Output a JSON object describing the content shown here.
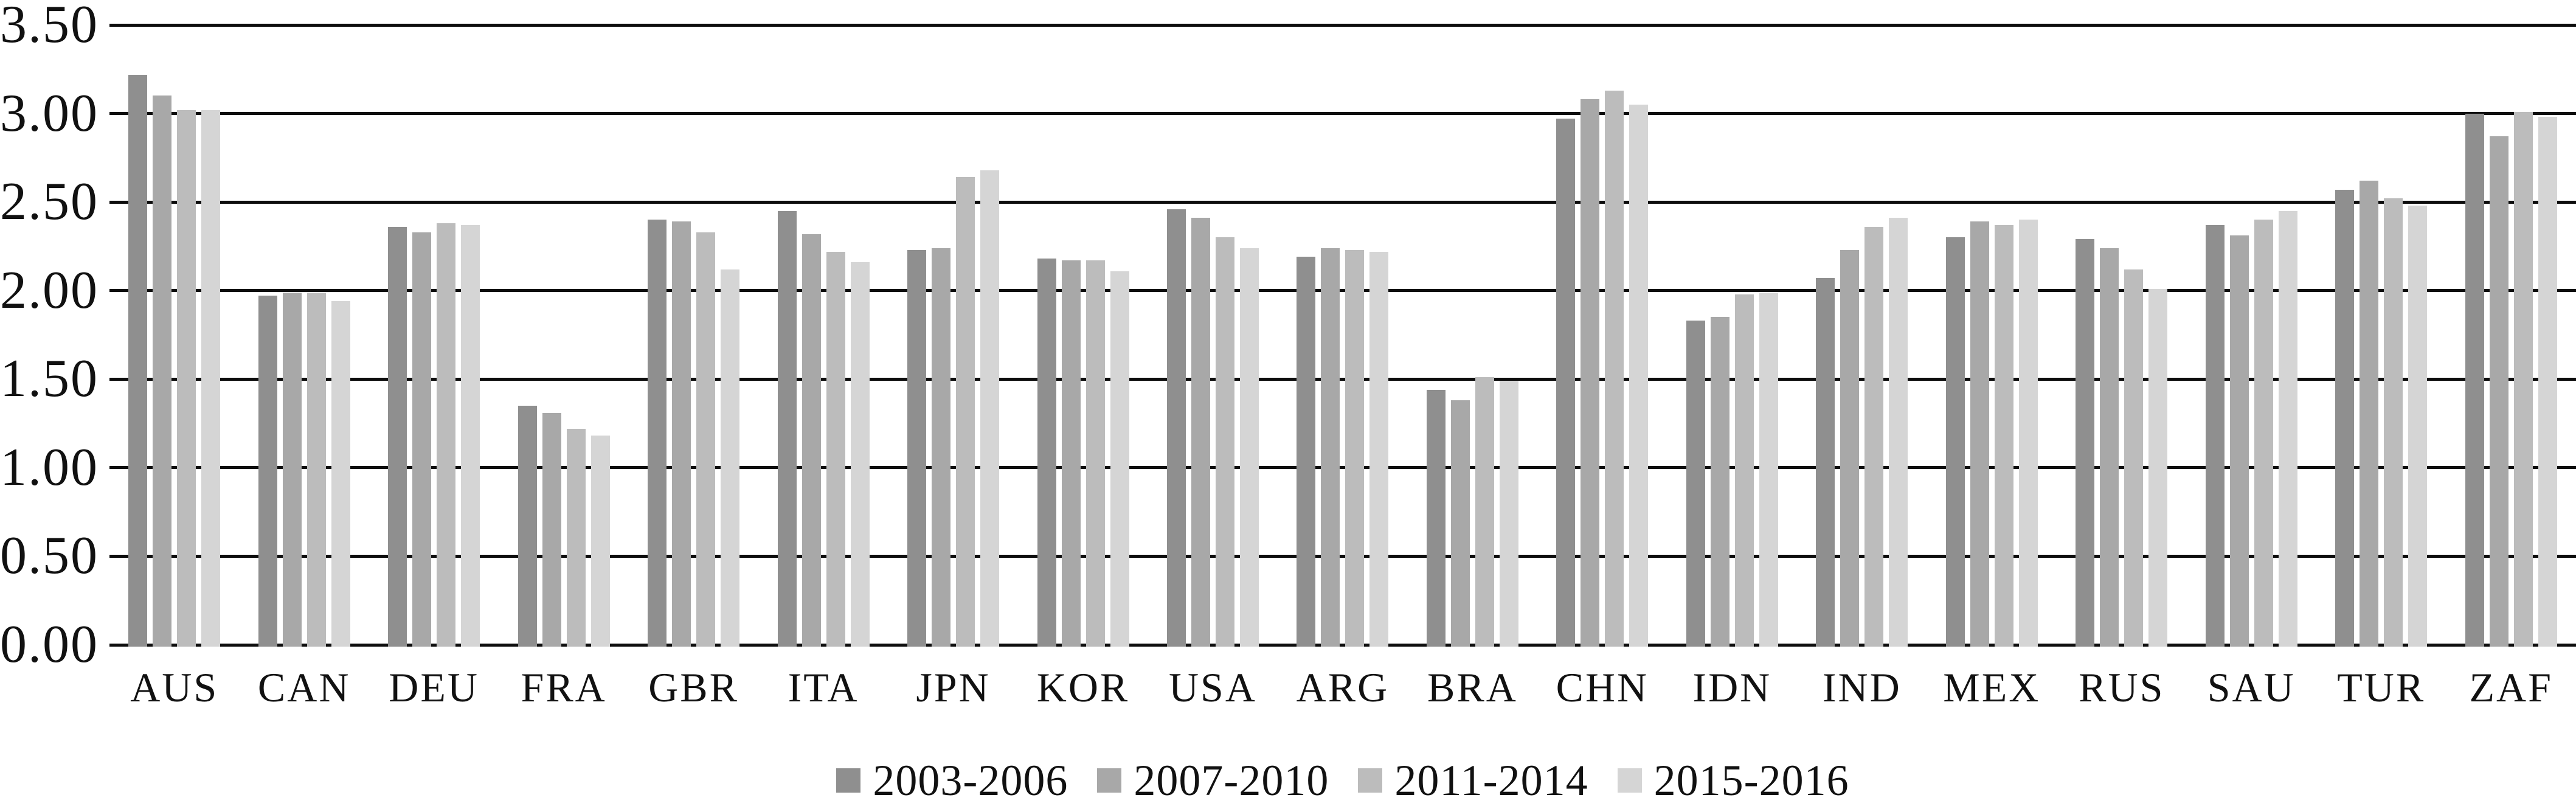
{
  "chart_data": {
    "type": "bar",
    "title": "",
    "categories": [
      "AUS",
      "CAN",
      "DEU",
      "FRA",
      "GBR",
      "ITA",
      "JPN",
      "KOR",
      "USA",
      "ARG",
      "BRA",
      "CHN",
      "IDN",
      "IND",
      "MEX",
      "RUS",
      "SAU",
      "TUR",
      "ZAF"
    ],
    "series": [
      {
        "name": "2003-2006",
        "color": "#8f8f8f",
        "values": [
          3.22,
          1.97,
          2.36,
          1.35,
          2.4,
          2.45,
          2.23,
          2.18,
          2.46,
          2.19,
          1.44,
          2.97,
          1.83,
          2.07,
          2.3,
          2.29,
          2.37,
          2.57,
          3.0
        ]
      },
      {
        "name": "2007-2010",
        "color": "#a8a8a8",
        "values": [
          3.1,
          1.99,
          2.33,
          1.31,
          2.39,
          2.32,
          2.24,
          2.17,
          2.41,
          2.24,
          1.38,
          3.08,
          1.85,
          2.23,
          2.39,
          2.24,
          2.31,
          2.62,
          2.87
        ]
      },
      {
        "name": "2011-2014",
        "color": "#bcbcbc",
        "values": [
          3.02,
          1.99,
          2.38,
          1.22,
          2.33,
          2.22,
          2.64,
          2.17,
          2.3,
          2.23,
          1.51,
          3.13,
          1.98,
          2.36,
          2.37,
          2.12,
          2.4,
          2.52,
          3.01
        ]
      },
      {
        "name": "2015-2016",
        "color": "#d5d5d5",
        "values": [
          3.02,
          1.94,
          2.37,
          1.18,
          2.12,
          2.16,
          2.68,
          2.11,
          2.24,
          2.22,
          1.49,
          3.05,
          1.99,
          2.41,
          2.4,
          2.01,
          2.45,
          2.48,
          2.98
        ]
      }
    ],
    "ylim": [
      0,
      3.5
    ],
    "ytick_step": 0.5,
    "ytick_labels_top_to_bottom": [
      "3.50",
      "3.00",
      "2.50",
      "2.00",
      "1.50",
      "1.00",
      "0.50",
      "0.00"
    ],
    "grid": "horizontal-solid-black",
    "legend_position": "bottom-center",
    "colors": {
      "background": "#ffffff",
      "gridline": "#0d0d0d",
      "text": "#111111"
    }
  }
}
